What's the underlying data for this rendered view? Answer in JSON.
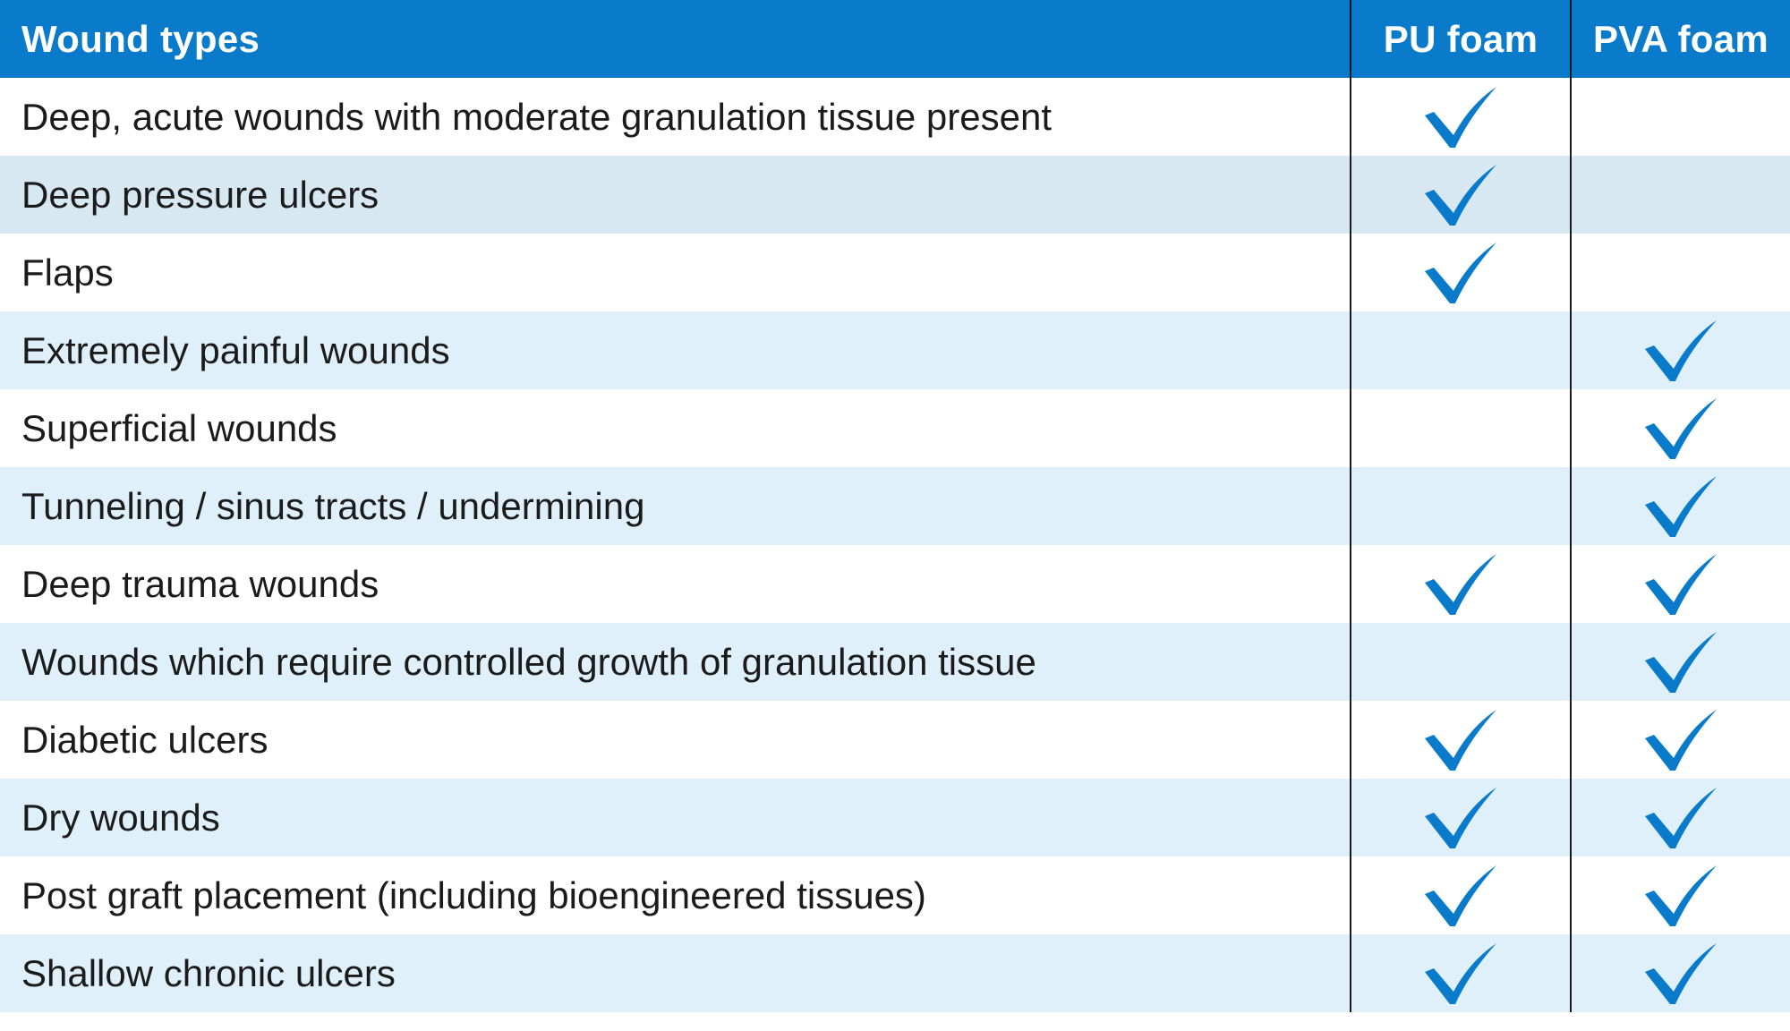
{
  "table": {
    "headers": {
      "wound_types": "Wound types",
      "pu_foam": "PU foam",
      "pva_foam": "PVA foam"
    },
    "colors": {
      "header_bg": "#0a7bcb",
      "row_white": "#ffffff",
      "row_blue": "#dff0fa",
      "row_blue_alt": "#d8e8f3",
      "check": "#0a7bcb"
    },
    "rows": [
      {
        "label": "Deep, acute wounds with moderate granulation tissue present",
        "pu": true,
        "pva": false
      },
      {
        "label": "Deep pressure ulcers",
        "pu": true,
        "pva": false
      },
      {
        "label": "Flaps",
        "pu": true,
        "pva": false
      },
      {
        "label": "Extremely painful wounds",
        "pu": false,
        "pva": true
      },
      {
        "label": "Superficial wounds",
        "pu": false,
        "pva": true
      },
      {
        "label": "Tunneling / sinus tracts / undermining",
        "pu": false,
        "pva": true
      },
      {
        "label": "Deep trauma wounds",
        "pu": true,
        "pva": true
      },
      {
        "label": "Wounds which require controlled growth of granulation tissue",
        "pu": false,
        "pva": true
      },
      {
        "label": "Diabetic ulcers",
        "pu": true,
        "pva": true
      },
      {
        "label": "Dry wounds",
        "pu": true,
        "pva": true
      },
      {
        "label": "Post graft placement (including bioengineered tissues)",
        "pu": true,
        "pva": true
      },
      {
        "label": "Shallow chronic ulcers",
        "pu": true,
        "pva": true
      }
    ],
    "check_icon": "checkmark-icon"
  }
}
